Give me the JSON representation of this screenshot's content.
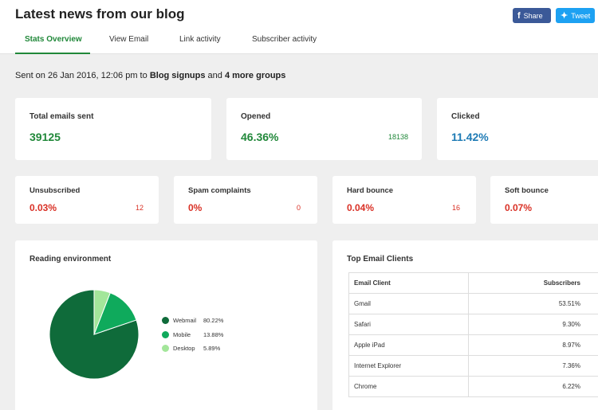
{
  "header": {
    "title": "Latest news from our blog",
    "share_facebook": "Share",
    "share_twitter": "Tweet",
    "tabs": [
      "Stats Overview",
      "View Email",
      "Link activity",
      "Subscriber activity"
    ]
  },
  "sent": {
    "prefix": "Sent on 26 Jan 2016, 12:06 pm to",
    "group": "Blog signups",
    "connector": "and",
    "more": "4 more groups"
  },
  "stats_top": [
    {
      "label": "Total emails sent",
      "value": "39125",
      "count": ""
    },
    {
      "label": "Opened",
      "value": "46.36%",
      "count": "18138"
    },
    {
      "label": "Clicked",
      "value": "11.42%",
      "count": ""
    }
  ],
  "stats_bottom": [
    {
      "label": "Unsubscribed",
      "value": "0.03%",
      "count": "12"
    },
    {
      "label": "Spam complaints",
      "value": "0%",
      "count": "0"
    },
    {
      "label": "Hard bounce",
      "value": "0.04%",
      "count": "16"
    },
    {
      "label": "Soft bounce",
      "value": "0.07%",
      "count": ""
    }
  ],
  "reading": {
    "title": "Reading environment",
    "items": [
      {
        "name": "Webmail",
        "pct": "80.22%"
      },
      {
        "name": "Mobile",
        "pct": "13.88%"
      },
      {
        "name": "Desktop",
        "pct": "5.89%"
      }
    ]
  },
  "chart_data": {
    "type": "pie",
    "categories": [
      "Webmail",
      "Mobile",
      "Desktop"
    ],
    "values": [
      80.22,
      13.88,
      5.89
    ],
    "colors": [
      "#0f6b3a",
      "#0faa5c",
      "#a3e69a"
    ],
    "legend": "right"
  },
  "clients": {
    "title": "Top Email Clients",
    "headers": [
      "Email Client",
      "Subscribers"
    ],
    "rows": [
      {
        "name": "Gmail",
        "value": "53.51%"
      },
      {
        "name": "Safari",
        "value": "9.30%"
      },
      {
        "name": "Apple iPad",
        "value": "8.97%"
      },
      {
        "name": "Internet Explorer",
        "value": "7.36%"
      },
      {
        "name": "Chrome",
        "value": "6.22%"
      }
    ]
  },
  "colors": {
    "accent": "#21883a",
    "link_blue": "#1e7bb5",
    "danger": "#d93025"
  }
}
